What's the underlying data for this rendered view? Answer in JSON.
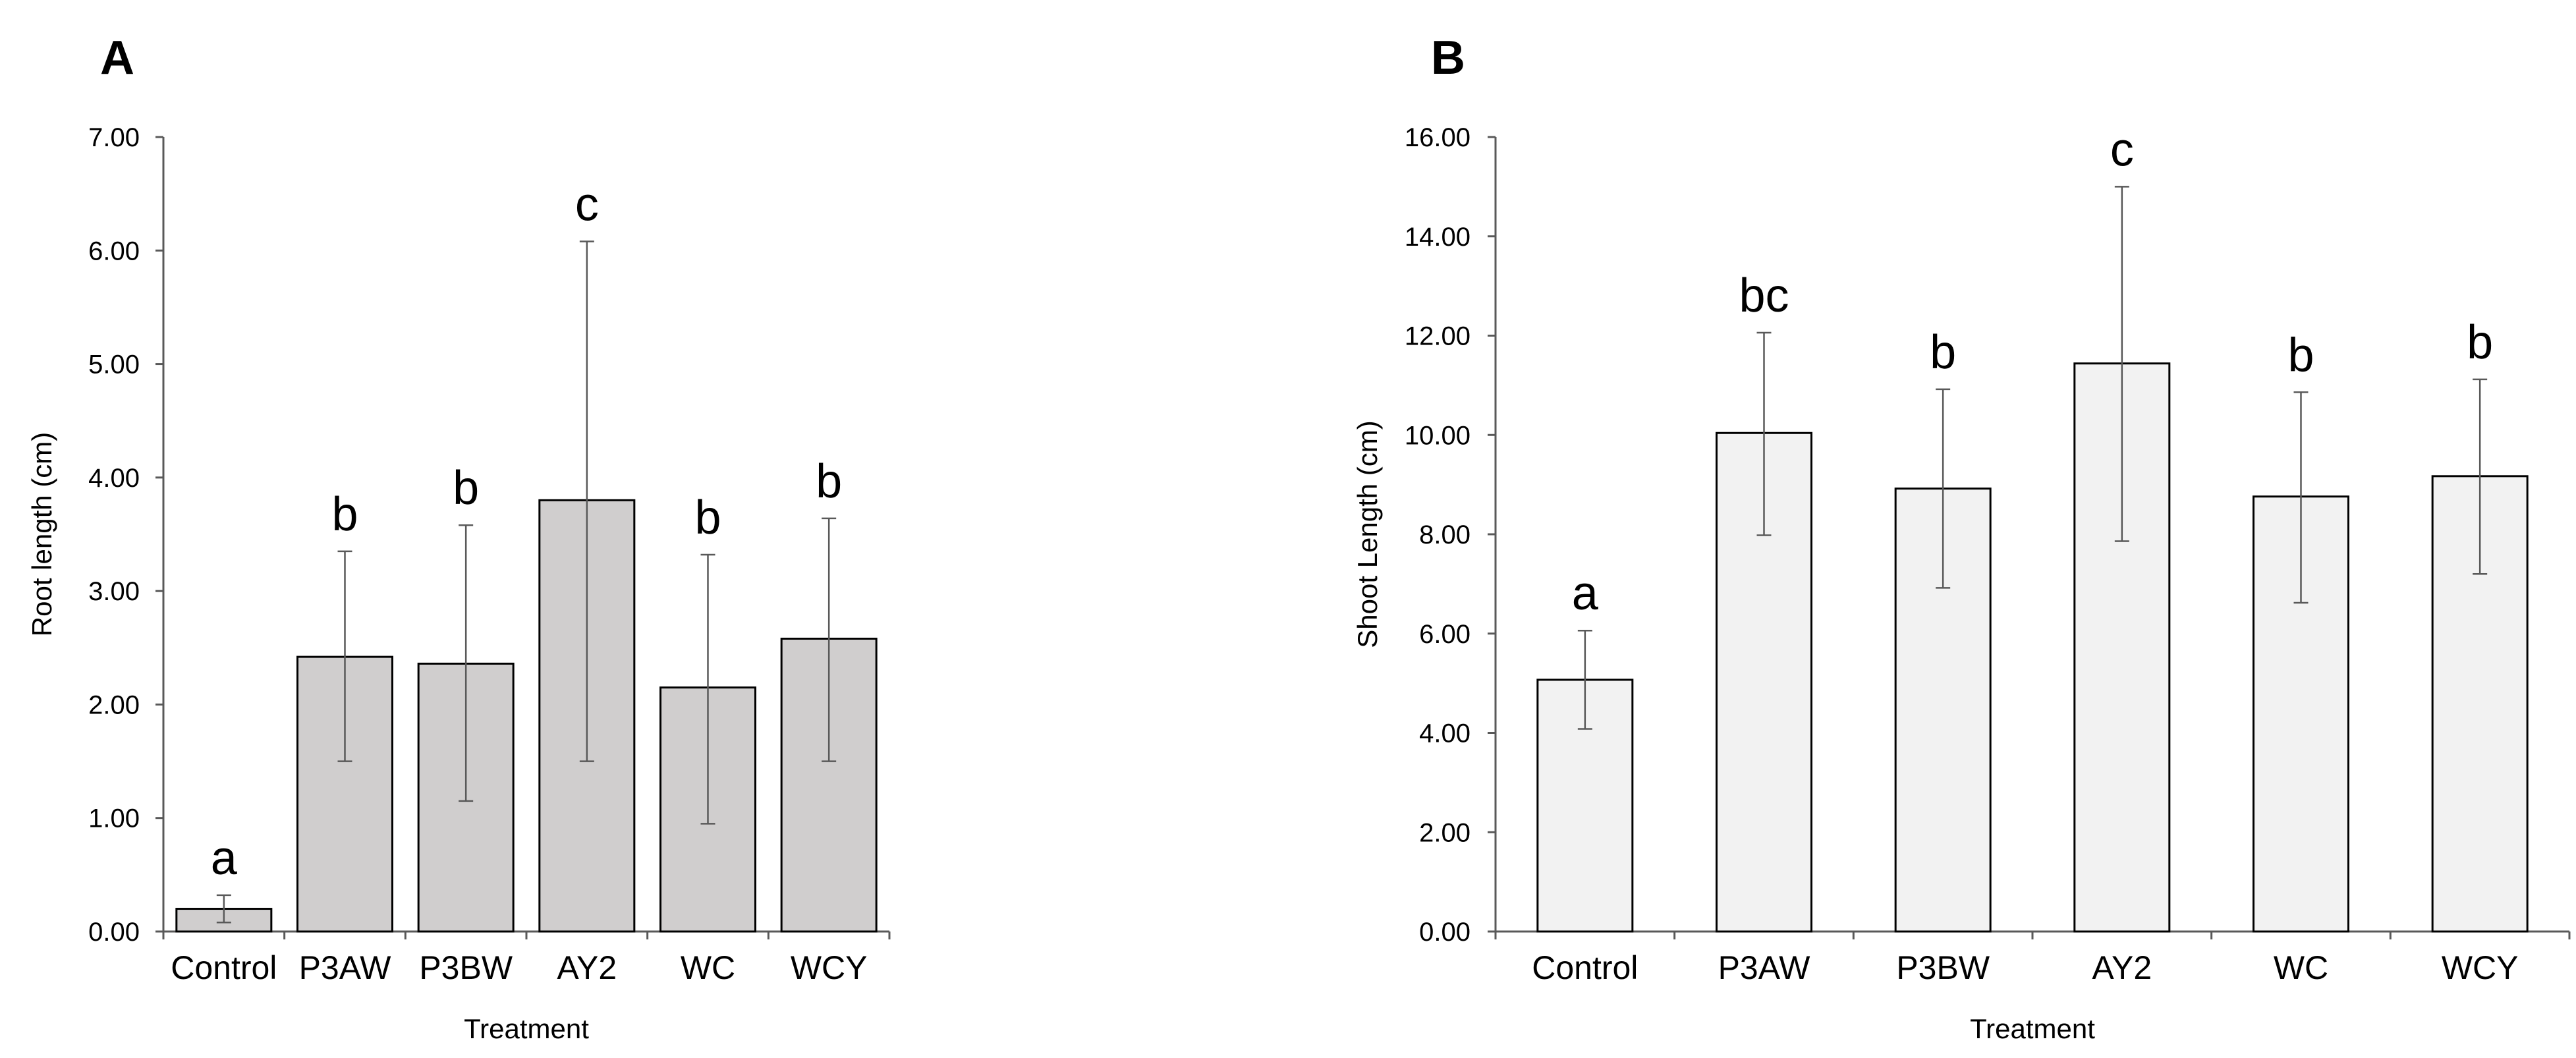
{
  "chart_data": [
    {
      "panel": "A",
      "type": "bar",
      "xlabel": "Treatment",
      "ylabel": "Root length (cm)",
      "ylim": [
        0,
        7
      ],
      "yticks": [
        "0.00",
        "1.00",
        "2.00",
        "3.00",
        "4.00",
        "5.00",
        "6.00",
        "7.00"
      ],
      "categories": [
        "Control",
        "P3AW",
        "P3BW",
        "AY2",
        "WC",
        "WCY"
      ],
      "values": [
        0.2,
        2.42,
        2.36,
        3.8,
        2.15,
        2.58
      ],
      "error_low": [
        0.08,
        1.5,
        1.15,
        1.5,
        0.95,
        1.5
      ],
      "error_high": [
        0.32,
        3.35,
        3.58,
        6.08,
        3.32,
        3.64
      ],
      "significance": [
        "a",
        "b",
        "b",
        "c",
        "b",
        "b"
      ],
      "bar_color": "#d0cece",
      "grid": false
    },
    {
      "panel": "B",
      "type": "bar",
      "xlabel": "Treatment",
      "ylabel": "Shoot Length (cm)",
      "ylim": [
        0,
        16
      ],
      "yticks": [
        "0.00",
        "2.00",
        "4.00",
        "6.00",
        "8.00",
        "10.00",
        "12.00",
        "14.00",
        "16.00"
      ],
      "categories": [
        "Control",
        "P3AW",
        "P3BW",
        "AY2",
        "WC",
        "WCY"
      ],
      "values": [
        5.07,
        10.04,
        8.92,
        11.44,
        8.76,
        9.17
      ],
      "error_low": [
        4.08,
        7.98,
        6.92,
        7.86,
        6.62,
        7.2
      ],
      "error_high": [
        6.06,
        12.06,
        10.92,
        15.0,
        10.86,
        11.12
      ],
      "significance": [
        "a",
        "bc",
        "b",
        "c",
        "b",
        "b"
      ],
      "bar_color": "#f2f2f2",
      "grid": false
    }
  ]
}
